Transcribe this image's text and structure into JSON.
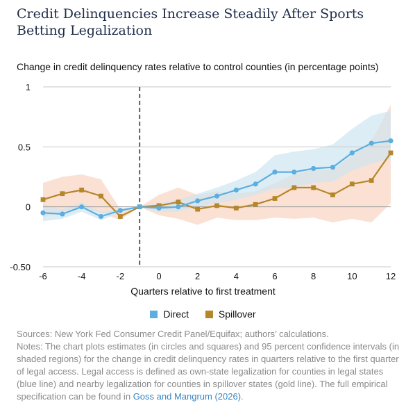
{
  "title": "Credit Delinquencies Increase Steadily After Sports Betting Legalization",
  "chart_data": {
    "type": "line",
    "title": "Credit Delinquencies Increase Steadily After Sports Betting Legalization",
    "subtitle": "Change in credit delinquency rates relative to control counties (in percentage points)",
    "xlabel": "Quarters relative to first treatment",
    "ylabel": "",
    "xlim": [
      -6,
      12
    ],
    "ylim": [
      -0.5,
      1
    ],
    "xticks": [
      -6,
      -4,
      -2,
      0,
      2,
      4,
      6,
      8,
      10,
      12
    ],
    "yticks": [
      -0.5,
      0,
      0.5,
      1
    ],
    "ytick_labels": [
      "-0.50",
      "0",
      "0.5",
      "1"
    ],
    "treatment_line_x": -1,
    "grid": "horizontal",
    "legend_position": "bottom",
    "x": [
      -6,
      -5,
      -4,
      -3,
      -2,
      -1,
      0,
      1,
      2,
      3,
      4,
      5,
      6,
      7,
      8,
      9,
      10,
      11,
      12
    ],
    "series": [
      {
        "name": "Direct",
        "color": "#5aaee0",
        "band_color": "#cfe5f1",
        "values": [
          -0.05,
          -0.06,
          0.0,
          -0.08,
          -0.03,
          0.0,
          -0.01,
          0.0,
          0.05,
          0.09,
          0.14,
          0.19,
          0.29,
          0.29,
          0.32,
          0.33,
          0.45,
          0.53,
          0.55
        ],
        "ci_lower": [
          -0.12,
          -0.1,
          -0.04,
          -0.11,
          -0.05,
          0.0,
          -0.04,
          -0.04,
          0.0,
          0.03,
          0.06,
          0.1,
          0.15,
          0.16,
          0.2,
          0.21,
          0.3,
          0.36,
          0.4
        ],
        "ci_upper": [
          0.02,
          -0.02,
          0.04,
          -0.04,
          -0.01,
          0.0,
          0.03,
          0.06,
          0.11,
          0.16,
          0.22,
          0.29,
          0.43,
          0.46,
          0.48,
          0.52,
          0.65,
          0.76,
          0.8
        ]
      },
      {
        "name": "Spillover",
        "color": "#b5862a",
        "band_color": "#f9dccb",
        "values": [
          0.06,
          0.11,
          0.14,
          0.09,
          -0.08,
          0.0,
          0.01,
          0.04,
          -0.02,
          0.01,
          -0.01,
          0.02,
          0.07,
          0.16,
          0.16,
          0.1,
          0.19,
          0.22,
          0.45
        ],
        "ci_lower": [
          -0.09,
          -0.04,
          -0.01,
          -0.05,
          -0.11,
          0.0,
          -0.07,
          -0.1,
          -0.15,
          -0.09,
          -0.11,
          -0.11,
          -0.09,
          -0.1,
          -0.09,
          -0.13,
          -0.1,
          -0.13,
          0.03
        ],
        "ci_upper": [
          0.2,
          0.25,
          0.27,
          0.23,
          -0.02,
          0.0,
          0.1,
          0.16,
          0.1,
          0.13,
          0.11,
          0.13,
          0.2,
          0.27,
          0.31,
          0.31,
          0.43,
          0.55,
          0.85
        ]
      }
    ]
  },
  "legend": {
    "direct_label": "Direct",
    "spillover_label": "Spillover"
  },
  "notes": {
    "sources": "Sources: New York Fed Consumer Credit Panel/Equifax; authors’ calculations.",
    "notes_text": "Notes: The chart plots estimates (in circles and squares) and 95 percent confidence intervals (in shaded regions) for the change in credit delinquency rates in quarters relative to the first quarter of legal access. Legal access is defined as own-state legalization for counties in legal states (blue line) and nearby legalization for counties in spillover states (gold line). The full empirical specification can be found in",
    "link_text": "Goss and Mangrum (2026)",
    "period": "."
  },
  "colors": {
    "title": "#1f2d4a",
    "gridline": "#c8c8c8",
    "zero_line": "#9a9a9a",
    "treatment_line": "#5a5a6a",
    "notes_text": "#8a8a8a",
    "link": "#3a86c4"
  }
}
